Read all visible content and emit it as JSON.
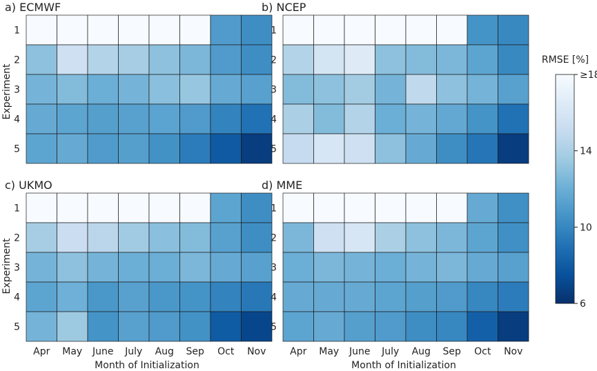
{
  "chart_data": {
    "type": "heatmap",
    "colorbar": {
      "label": "RMSE [%]",
      "min": 6,
      "max": 18,
      "ticks": [
        {
          "value": 18,
          "label": "≥18"
        },
        {
          "value": 14,
          "label": "14"
        },
        {
          "value": 10,
          "label": "10"
        },
        {
          "value": 6,
          "label": "6"
        }
      ],
      "colors": [
        "#08306b",
        "#08519c",
        "#2171b5",
        "#4292c6",
        "#6baed6",
        "#9ecae1",
        "#c6dbef",
        "#deebf7",
        "#f7fbff"
      ]
    },
    "xlabel": "Month of Initialization",
    "ylabel": "Experiment",
    "x_categories": [
      "Apr",
      "May",
      "June",
      "July",
      "Aug",
      "Sep",
      "Oct",
      "Nov"
    ],
    "y_categories": [
      "1",
      "2",
      "3",
      "4",
      "5"
    ],
    "panels": [
      {
        "title": "a) ECMWF",
        "values": [
          [
            18,
            18,
            18,
            18,
            18,
            18,
            11.0,
            10.3
          ],
          [
            13.0,
            15.5,
            14.3,
            13.8,
            13.0,
            12.5,
            11.0,
            10.3
          ],
          [
            12.3,
            12.7,
            12.0,
            12.3,
            12.9,
            13.3,
            11.8,
            11.3
          ],
          [
            11.8,
            11.5,
            11.2,
            11.3,
            11.4,
            11.0,
            9.8,
            9.0
          ],
          [
            11.5,
            11.8,
            11.0,
            11.2,
            10.5,
            9.5,
            7.9,
            6.6
          ]
        ]
      },
      {
        "title": "b) NCEP",
        "values": [
          [
            18,
            18,
            18,
            18,
            18,
            18,
            10.6,
            10.1
          ],
          [
            14.3,
            15.8,
            16.5,
            13.0,
            12.7,
            12.5,
            11.5,
            10.1
          ],
          [
            12.7,
            13.0,
            13.7,
            12.3,
            14.8,
            13.0,
            12.3,
            11.3
          ],
          [
            14.0,
            12.7,
            14.3,
            12.0,
            12.3,
            11.7,
            10.6,
            9.0
          ],
          [
            15.0,
            16.0,
            15.5,
            13.0,
            11.8,
            10.3,
            9.2,
            6.6
          ]
        ]
      },
      {
        "title": "c) UKMO",
        "values": [
          [
            18,
            18,
            18,
            18,
            18,
            18,
            11.5,
            10.3
          ],
          [
            13.8,
            15.3,
            14.6,
            13.6,
            12.9,
            12.7,
            11.3,
            10.3
          ],
          [
            12.3,
            13.0,
            12.3,
            12.0,
            12.0,
            12.5,
            11.8,
            11.3
          ],
          [
            11.5,
            12.1,
            10.8,
            11.3,
            10.8,
            10.6,
            9.8,
            9.3
          ],
          [
            12.3,
            13.5,
            10.6,
            11.3,
            11.0,
            10.5,
            8.0,
            7.0
          ]
        ]
      },
      {
        "title": "d) MME",
        "values": [
          [
            18,
            18,
            18,
            18,
            18,
            18,
            11.8,
            10.4
          ],
          [
            12.5,
            15.5,
            16.0,
            14.0,
            13.0,
            12.5,
            11.5,
            10.4
          ],
          [
            12.0,
            12.5,
            12.3,
            12.0,
            12.3,
            12.5,
            11.8,
            11.3
          ],
          [
            11.8,
            11.8,
            11.8,
            11.5,
            11.2,
            11.0,
            10.0,
            9.5
          ],
          [
            11.5,
            11.8,
            11.2,
            11.0,
            10.3,
            10.0,
            8.2,
            6.6
          ]
        ]
      }
    ]
  }
}
